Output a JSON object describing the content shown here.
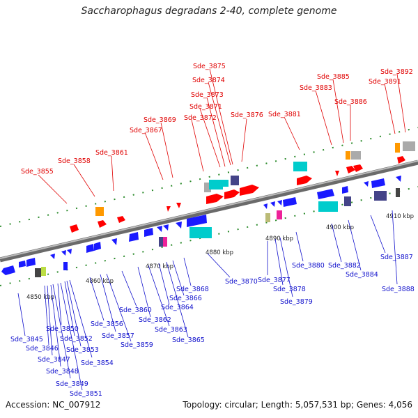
{
  "title": "Saccharophagus degradans 2-40, complete genome",
  "accession": "Accession: NC_007912",
  "topology": "Topology: circular; Length: 5,057,531 bp; Genes: 4,056",
  "ticks": [
    {
      "label": "4850 kbp"
    },
    {
      "label": "4860 kbp"
    },
    {
      "label": "4870 kbp"
    },
    {
      "label": "4880 kbp"
    },
    {
      "label": "4890 kbp"
    },
    {
      "label": "4900 kbp"
    },
    {
      "label": "4910 kbp"
    }
  ],
  "top_labels": [
    "Sde_3855",
    "Sde_3858",
    "Sde_3861",
    "Sde_3867",
    "Sde_3869",
    "Sde_3872",
    "Sde_3871",
    "Sde_3873",
    "Sde_3874",
    "Sde_3875",
    "Sde_3876",
    "Sde_3881",
    "Sde_3883",
    "Sde_3885",
    "Sde_3886",
    "Sde_3891",
    "Sde_3892"
  ],
  "bottom_labels": [
    "Sde_3845",
    "Sde_3846",
    "Sde_3847",
    "Sde_3848",
    "Sde_3849",
    "Sde_3850",
    "Sde_3851",
    "Sde_3852",
    "Sde_3853",
    "Sde_3854",
    "Sde_3856",
    "Sde_3857",
    "Sde_3859",
    "Sde_3860",
    "Sde_3862",
    "Sde_3863",
    "Sde_3864",
    "Sde_3865",
    "Sde_3866",
    "Sde_3868",
    "Sde_3870",
    "Sde_3877",
    "Sde_3878",
    "Sde_3879",
    "Sde_3880",
    "Sde_3882",
    "Sde_3884",
    "Sde_3887",
    "Sde_3888"
  ],
  "colors": {
    "forward": "#ff0000",
    "reverse": "#1a1aff",
    "rna": "#00cccc",
    "other": "#444488",
    "axis": "#888888",
    "tick": "#2a8a2a",
    "top_label": "#e00000",
    "bottom_label": "#1010cc"
  }
}
